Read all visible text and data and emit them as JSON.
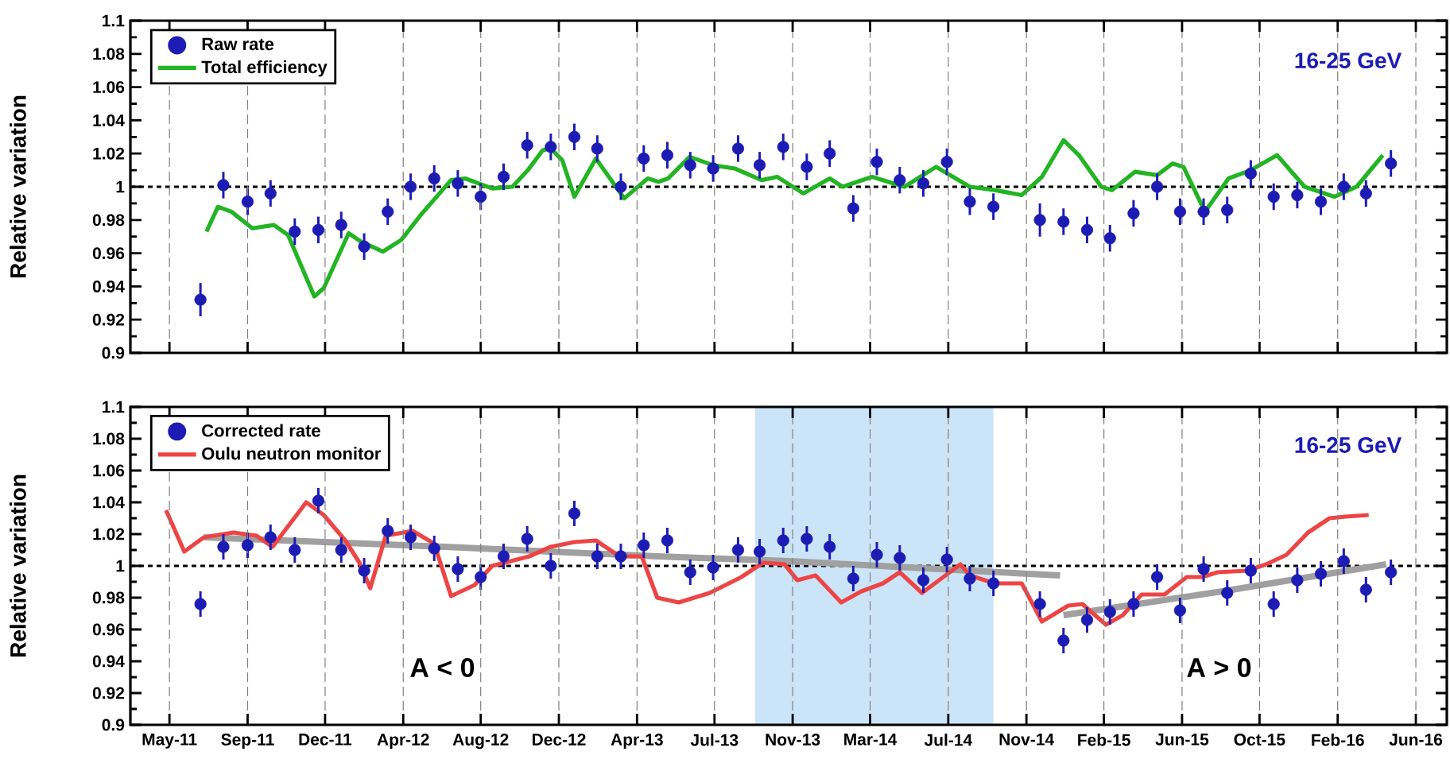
{
  "chart_data": [
    {
      "type": "scatter",
      "ylabel": "Relative variation",
      "xlim": [
        "2011-03-13",
        "2016-07-18"
      ],
      "ylim": [
        0.9,
        1.1
      ],
      "xticks": [
        {
          "value": "2011-05-10",
          "label": null
        },
        {
          "value": "2011-09-03",
          "label": null
        },
        {
          "value": "2011-12-27",
          "label": null
        },
        {
          "value": "2012-04-21",
          "label": null
        },
        {
          "value": "2012-08-14",
          "label": null
        },
        {
          "value": "2012-12-08",
          "label": null
        },
        {
          "value": "2013-04-03",
          "label": null
        },
        {
          "value": "2013-07-27",
          "label": null
        },
        {
          "value": "2013-11-20",
          "label": null
        },
        {
          "value": "2014-03-15",
          "label": null
        },
        {
          "value": "2014-07-09",
          "label": null
        },
        {
          "value": "2014-11-02",
          "label": null
        },
        {
          "value": "2015-02-25",
          "label": null
        },
        {
          "value": "2015-06-21",
          "label": null
        },
        {
          "value": "2015-10-14",
          "label": null
        },
        {
          "value": "2016-02-07",
          "label": null
        },
        {
          "value": "2016-06-02",
          "label": null
        }
      ],
      "yticks": [
        0.9,
        0.92,
        0.94,
        0.96,
        0.98,
        1,
        1.02,
        1.04,
        1.06,
        1.08,
        1.1
      ],
      "tick_labels": "y",
      "grid": "x",
      "legend": "top left",
      "annotations": [
        "16-25 GeV"
      ],
      "ref_lines": [
        {
          "axis": "y",
          "value": 1,
          "color": "#000000",
          "line_style": "dashed"
        }
      ],
      "series": [
        {
          "type": "scatter",
          "name": "Raw rate",
          "color": "#1c1cb4",
          "x": [
            "2011-06-25",
            "2011-07-29",
            "2011-09-03",
            "2011-10-07",
            "2011-11-12",
            "2011-12-17",
            "2012-01-20",
            "2012-02-23",
            "2012-03-29",
            "2012-05-02",
            "2012-06-06",
            "2012-07-11",
            "2012-08-14",
            "2012-09-17",
            "2012-10-22",
            "2012-11-26",
            "2012-12-31",
            "2013-02-03",
            "2013-03-10",
            "2013-04-13",
            "2013-05-18",
            "2013-06-21",
            "2013-07-25",
            "2013-08-31",
            "2013-10-02",
            "2013-11-06",
            "2013-12-11",
            "2014-01-14",
            "2014-02-18",
            "2014-03-25",
            "2014-04-28",
            "2014-06-02",
            "2014-07-07",
            "2014-08-10",
            "2014-09-14",
            "2014-11-22",
            "2014-12-27",
            "2015-01-31",
            "2015-03-06",
            "2015-04-10",
            "2015-05-15",
            "2015-06-18",
            "2015-07-23",
            "2015-08-27",
            "2015-10-01",
            "2015-11-04",
            "2015-12-09",
            "2016-01-13",
            "2016-02-16",
            "2016-03-20",
            "2016-04-26"
          ],
          "values": [
            0.932,
            1.001,
            0.991,
            0.996,
            0.973,
            0.974,
            0.977,
            0.964,
            0.985,
            1.0,
            1.005,
            1.002,
            0.994,
            1.006,
            1.025,
            1.024,
            1.03,
            1.023,
            1.0,
            1.017,
            1.019,
            1.013,
            1.011,
            1.023,
            1.013,
            1.024,
            1.012,
            1.02,
            0.987,
            1.015,
            1.004,
            1.002,
            1.015,
            0.991,
            0.988,
            0.98,
            0.979,
            0.974,
            0.969,
            0.984,
            1.0,
            0.985,
            0.985,
            0.986,
            1.008,
            0.994,
            0.995,
            0.991,
            1.0,
            0.996,
            1.014
          ],
          "errors": [
            0.01,
            0.008,
            0.008,
            0.008,
            0.008,
            0.008,
            0.008,
            0.008,
            0.008,
            0.008,
            0.008,
            0.008,
            0.008,
            0.008,
            0.008,
            0.008,
            0.008,
            0.008,
            0.008,
            0.008,
            0.008,
            0.008,
            0.008,
            0.008,
            0.008,
            0.008,
            0.008,
            0.008,
            0.008,
            0.008,
            0.008,
            0.008,
            0.008,
            0.008,
            0.008,
            0.01,
            0.008,
            0.008,
            0.008,
            0.008,
            0.008,
            0.008,
            0.008,
            0.008,
            0.008,
            0.008,
            0.008,
            0.008,
            0.008,
            0.008,
            0.008
          ]
        },
        {
          "type": "line",
          "name": "Total efficiency",
          "color": "#22b422",
          "x": [
            "2011-07-04",
            "2011-07-21",
            "2011-08-10",
            "2011-09-10",
            "2011-10-12",
            "2011-11-02",
            "2011-12-11",
            "2011-12-25",
            "2012-01-31",
            "2012-02-18",
            "2012-03-22",
            "2012-04-18",
            "2012-05-19",
            "2012-07-01",
            "2012-07-22",
            "2012-08-31",
            "2012-09-30",
            "2012-10-23",
            "2012-11-14",
            "2012-11-26",
            "2012-12-13",
            "2012-12-31",
            "2013-02-01",
            "2013-03-15",
            "2013-04-19",
            "2013-05-05",
            "2013-05-19",
            "2013-06-20",
            "2013-07-25",
            "2013-08-26",
            "2013-10-05",
            "2013-10-28",
            "2013-12-06",
            "2014-01-14",
            "2014-02-02",
            "2014-03-18",
            "2014-05-05",
            "2014-06-21",
            "2014-08-10",
            "2014-09-16",
            "2014-10-26",
            "2014-11-25",
            "2014-12-27",
            "2015-01-19",
            "2015-02-21",
            "2015-03-09",
            "2015-04-12",
            "2015-05-15",
            "2015-06-07",
            "2015-06-23",
            "2015-07-25",
            "2015-08-29",
            "2015-10-01",
            "2015-11-09",
            "2015-12-20",
            "2016-02-02",
            "2016-03-06",
            "2016-04-14"
          ],
          "values": [
            0.973,
            0.988,
            0.985,
            0.975,
            0.977,
            0.971,
            0.934,
            0.939,
            0.972,
            0.967,
            0.961,
            0.968,
            0.984,
            1.004,
            1.005,
            0.999,
            1.0,
            1.01,
            1.022,
            1.023,
            1.016,
            0.994,
            1.017,
            0.993,
            1.005,
            1.003,
            1.005,
            1.018,
            1.013,
            1.011,
            1.004,
            1.006,
            0.996,
            1.005,
            1.0,
            1.006,
            1.0,
            1.012,
            1.0,
            0.998,
            0.995,
            1.006,
            1.028,
            1.019,
            1.0,
            0.998,
            1.009,
            1.007,
            1.014,
            1.012,
            0.985,
            1.005,
            1.01,
            1.019,
            1.0,
            0.994,
            1.0,
            1.019
          ]
        }
      ]
    },
    {
      "type": "scatter",
      "ylabel": "Relative variation",
      "xlim": [
        "2011-03-13",
        "2016-07-18"
      ],
      "ylim": [
        0.9,
        1.1
      ],
      "xticks": [
        {
          "value": "2011-05-10",
          "label": "May-11"
        },
        {
          "value": "2011-09-03",
          "label": "Sep-11"
        },
        {
          "value": "2011-12-27",
          "label": "Dec-11"
        },
        {
          "value": "2012-04-21",
          "label": "Apr-12"
        },
        {
          "value": "2012-08-14",
          "label": "Aug-12"
        },
        {
          "value": "2012-12-08",
          "label": "Dec-12"
        },
        {
          "value": "2013-04-03",
          "label": "Apr-13"
        },
        {
          "value": "2013-07-27",
          "label": "Jul-13"
        },
        {
          "value": "2013-11-20",
          "label": "Nov-13"
        },
        {
          "value": "2014-03-15",
          "label": "Mar-14"
        },
        {
          "value": "2014-07-09",
          "label": "Jul-14"
        },
        {
          "value": "2014-11-02",
          "label": "Nov-14"
        },
        {
          "value": "2015-02-25",
          "label": "Feb-15"
        },
        {
          "value": "2015-06-21",
          "label": "Jun-15"
        },
        {
          "value": "2015-10-14",
          "label": "Oct-15"
        },
        {
          "value": "2016-02-07",
          "label": "Feb-16"
        },
        {
          "value": "2016-06-02",
          "label": "Jun-16"
        }
      ],
      "yticks": [
        0.9,
        0.92,
        0.94,
        0.96,
        0.98,
        1,
        1.02,
        1.04,
        1.06,
        1.08,
        1.1
      ],
      "grid": "x",
      "legend": "top left",
      "annotations": [
        "16-25 GeV",
        "A < 0",
        "A > 0"
      ],
      "ref_lines": [
        {
          "axis": "y",
          "value": 1,
          "color": "#000000",
          "line_style": "dashed"
        }
      ],
      "bands": [
        {
          "axis": "x",
          "from": "2013-09-25",
          "to": "2014-09-14",
          "color": "#cce4f8"
        }
      ],
      "series": [
        {
          "type": "scatter",
          "name": "Corrected rate",
          "color": "#1c1cb4",
          "x": [
            "2011-06-25",
            "2011-07-29",
            "2011-09-03",
            "2011-10-07",
            "2011-11-12",
            "2011-12-17",
            "2012-01-20",
            "2012-02-23",
            "2012-03-29",
            "2012-05-02",
            "2012-06-06",
            "2012-07-11",
            "2012-08-14",
            "2012-09-17",
            "2012-10-22",
            "2012-11-26",
            "2012-12-31",
            "2013-02-03",
            "2013-03-10",
            "2013-04-13",
            "2013-05-18",
            "2013-06-21",
            "2013-07-25",
            "2013-08-31",
            "2013-10-02",
            "2013-11-06",
            "2013-12-11",
            "2014-01-14",
            "2014-02-18",
            "2014-03-25",
            "2014-04-28",
            "2014-06-02",
            "2014-07-07",
            "2014-08-10",
            "2014-09-14",
            "2014-11-22",
            "2014-12-27",
            "2015-01-31",
            "2015-03-06",
            "2015-04-10",
            "2015-05-15",
            "2015-06-18",
            "2015-07-23",
            "2015-08-27",
            "2015-10-01",
            "2015-11-04",
            "2015-12-09",
            "2016-01-13",
            "2016-02-16",
            "2016-03-20",
            "2016-04-26"
          ],
          "values": [
            0.976,
            1.012,
            1.013,
            1.018,
            1.01,
            1.041,
            1.01,
            0.997,
            1.022,
            1.018,
            1.011,
            0.998,
            0.993,
            1.006,
            1.017,
            1.0,
            1.033,
            1.006,
            1.006,
            1.013,
            1.016,
            0.996,
            0.999,
            1.01,
            1.009,
            1.016,
            1.017,
            1.012,
            0.992,
            1.007,
            1.005,
            0.991,
            1.004,
            0.992,
            0.989,
            0.976,
            0.953,
            0.966,
            0.971,
            0.976,
            0.993,
            0.972,
            0.998,
            0.983,
            0.997,
            0.976,
            0.991,
            0.995,
            1.003,
            0.985,
            0.996
          ],
          "errors": [
            0.008,
            0.008,
            0.008,
            0.008,
            0.008,
            0.008,
            0.008,
            0.008,
            0.008,
            0.008,
            0.008,
            0.008,
            0.008,
            0.008,
            0.008,
            0.008,
            0.008,
            0.008,
            0.008,
            0.008,
            0.008,
            0.008,
            0.008,
            0.008,
            0.008,
            0.008,
            0.008,
            0.008,
            0.008,
            0.008,
            0.008,
            0.008,
            0.008,
            0.008,
            0.008,
            0.008,
            0.008,
            0.008,
            0.008,
            0.008,
            0.008,
            0.008,
            0.008,
            0.008,
            0.008,
            0.008,
            0.008,
            0.008,
            0.008,
            0.008,
            0.008
          ]
        },
        {
          "type": "line",
          "name": "Oulu neutron monitor",
          "color": "#ee4444",
          "x": [
            "2011-05-05",
            "2011-06-01",
            "2011-06-30",
            "2011-08-13",
            "2011-09-16",
            "2011-10-10",
            "2011-11-29",
            "2011-12-25",
            "2012-01-26",
            "2012-02-16",
            "2012-03-03",
            "2012-03-26",
            "2012-05-05",
            "2012-06-06",
            "2012-07-01",
            "2012-08-05",
            "2012-08-31",
            "2012-10-25",
            "2012-11-26",
            "2012-12-31",
            "2013-02-01",
            "2013-03-08",
            "2013-04-10",
            "2013-05-03",
            "2013-06-04",
            "2013-07-20",
            "2013-09-05",
            "2013-10-07",
            "2013-11-08",
            "2013-11-27",
            "2013-12-24",
            "2014-01-31",
            "2014-03-02",
            "2014-04-03",
            "2014-04-28",
            "2014-05-31",
            "2014-07-27",
            "2014-08-10",
            "2014-09-16",
            "2014-10-26",
            "2014-11-25",
            "2015-01-03",
            "2015-01-24",
            "2015-02-28",
            "2015-03-25",
            "2015-04-22",
            "2015-05-26",
            "2015-06-28",
            "2015-07-21",
            "2015-08-13",
            "2015-09-26",
            "2015-10-24",
            "2015-11-23",
            "2015-12-25",
            "2016-01-26",
            "2016-02-19",
            "2016-03-24"
          ],
          "values": [
            1.035,
            1.009,
            1.018,
            1.021,
            1.019,
            1.012,
            1.04,
            1.032,
            1.016,
            1.002,
            0.986,
            1.019,
            1.022,
            1.014,
            0.981,
            0.988,
            1.0,
            1.006,
            1.012,
            1.015,
            1.016,
            1.006,
            1.006,
            0.98,
            0.977,
            0.983,
            0.993,
            1.002,
            1.001,
            0.991,
            0.994,
            0.977,
            0.984,
            0.989,
            0.996,
            0.983,
            1.001,
            0.994,
            0.989,
            0.989,
            0.965,
            0.975,
            0.976,
            0.963,
            0.969,
            0.982,
            0.982,
            0.993,
            0.993,
            0.996,
            0.997,
            1.001,
            1.007,
            1.021,
            1.03,
            1.031,
            1.032
          ]
        },
        {
          "type": "line",
          "color": "#a0a0a0",
          "x": [
            "2011-06-30",
            "2012-06-22",
            "2013-05-03",
            "2013-11-15",
            "2014-12-22"
          ],
          "values": [
            1.018,
            1.012,
            1.006,
            1.003,
            0.994
          ]
        },
        {
          "type": "line",
          "color": "#a0a0a0",
          "x": [
            "2014-12-27",
            "2015-08-20",
            "2016-04-19"
          ],
          "values": [
            0.969,
            0.984,
            1.001
          ]
        }
      ]
    }
  ]
}
